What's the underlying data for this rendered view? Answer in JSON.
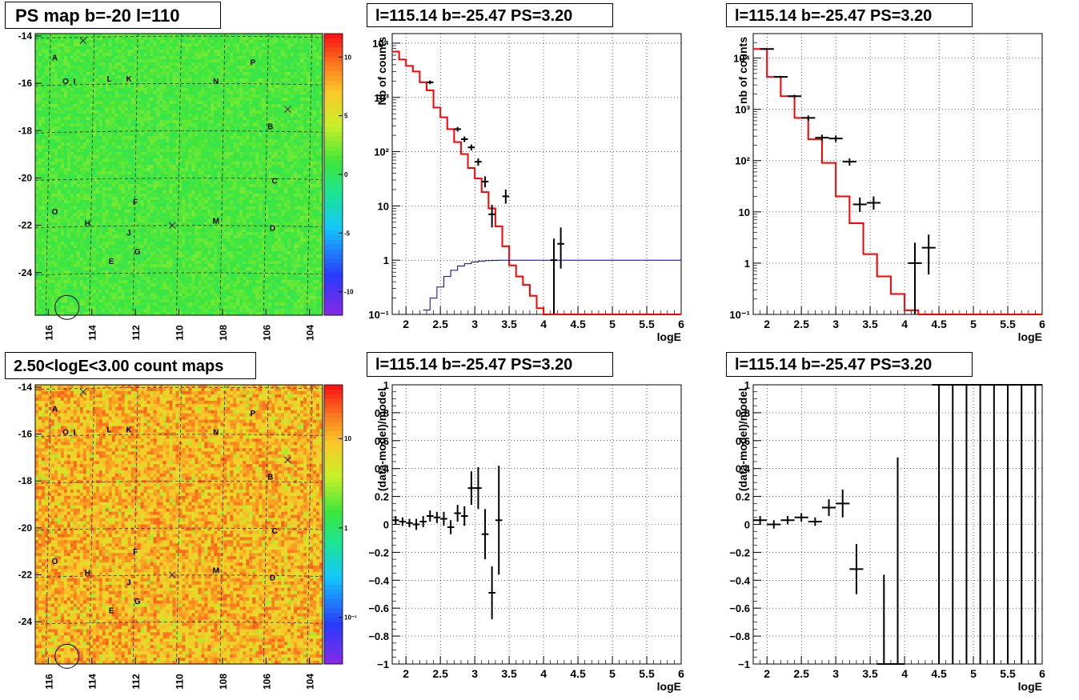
{
  "panels": {
    "ps_map": {
      "title": "PS map b=-20 l=110"
    },
    "count_map": {
      "title": "2.50<logE<3.00 count maps"
    },
    "spec_tl": {
      "title": "l=115.14 b=-25.47 PS=3.20"
    },
    "spec_tr": {
      "title": "l=115.14 b=-25.47 PS=3.20"
    },
    "res_bl": {
      "title": "l=115.14 b=-25.47 PS=3.20"
    },
    "res_br": {
      "title": "l=115.14 b=-25.47 PS=3.20"
    }
  },
  "chart_data": [
    {
      "id": "ps_map",
      "type": "heatmap",
      "title": "PS map b=-20 l=110",
      "xlim": [
        116.6,
        103.4
      ],
      "ylim": [
        -25.8,
        -13.9
      ],
      "xticks": [
        "116",
        "114",
        "112",
        "110",
        "108",
        "106",
        "104"
      ],
      "xtick_values": [
        116,
        114,
        112,
        110,
        108,
        106,
        104
      ],
      "yticks": [
        "-14",
        "-16",
        "-18",
        "-20",
        "-22",
        "-24"
      ],
      "ytick_values": [
        -14,
        -16,
        -18,
        -20,
        -22,
        -24
      ],
      "colorbar_ticks": [
        "10",
        "5",
        "0",
        "-5",
        "-10"
      ],
      "colorbar_tick_values": [
        10,
        5,
        0,
        -5,
        -10
      ],
      "colorbar_range": [
        -12,
        12
      ],
      "dominant_color": "#33dd33",
      "sources": [
        {
          "label": "A",
          "l": 115.7,
          "b": -14.9
        },
        {
          "label": "O",
          "l": 115.2,
          "b": -15.9
        },
        {
          "label": "I",
          "l": 114.8,
          "b": -15.9
        },
        {
          "label": "L",
          "l": 113.2,
          "b": -15.8
        },
        {
          "label": "K",
          "l": 112.3,
          "b": -15.8
        },
        {
          "label": "N",
          "l": 108.3,
          "b": -15.9
        },
        {
          "label": "P",
          "l": 106.6,
          "b": -15.1
        },
        {
          "label": "B",
          "l": 105.8,
          "b": -17.8
        },
        {
          "label": "C",
          "l": 105.6,
          "b": -20.1
        },
        {
          "label": "F",
          "l": 112.0,
          "b": -21.0
        },
        {
          "label": "O",
          "l": 115.7,
          "b": -21.4
        },
        {
          "label": "H",
          "l": 114.2,
          "b": -21.9
        },
        {
          "label": "M",
          "l": 108.3,
          "b": -21.8
        },
        {
          "label": "D",
          "l": 105.7,
          "b": -22.1
        },
        {
          "label": "J",
          "l": 112.3,
          "b": -22.3
        },
        {
          "label": "G",
          "l": 111.9,
          "b": -23.1
        },
        {
          "label": "E",
          "l": 113.1,
          "b": -23.5
        }
      ],
      "crosses": [
        {
          "l": 114.4,
          "b": -14.2
        },
        {
          "l": 105.0,
          "b": -17.1
        },
        {
          "l": 110.3,
          "b": -22.0
        }
      ],
      "circle": {
        "l": 115.14,
        "b": -25.47
      }
    },
    {
      "id": "count_map",
      "type": "heatmap",
      "title": "2.50<logE<3.00 count maps",
      "xlim": [
        116.6,
        103.4
      ],
      "ylim": [
        -25.8,
        -13.9
      ],
      "xticks": [
        "116",
        "114",
        "112",
        "110",
        "108",
        "106",
        "104"
      ],
      "xtick_values": [
        116,
        114,
        112,
        110,
        108,
        106,
        104
      ],
      "yticks": [
        "-14",
        "-16",
        "-18",
        "-20",
        "-22",
        "-24"
      ],
      "ytick_values": [
        -14,
        -16,
        -18,
        -20,
        -22,
        -24
      ],
      "colorbar_ticks": [
        "10",
        "1",
        "10⁻¹"
      ],
      "colorbar_tick_values": [
        10,
        1,
        0.1
      ],
      "colorbar_range_log": [
        0.03,
        40
      ],
      "dominant_color": "#f08020",
      "sources": [
        {
          "label": "A",
          "l": 115.7,
          "b": -14.9
        },
        {
          "label": "O",
          "l": 115.2,
          "b": -15.9
        },
        {
          "label": "I",
          "l": 114.8,
          "b": -15.9
        },
        {
          "label": "L",
          "l": 113.2,
          "b": -15.8
        },
        {
          "label": "K",
          "l": 112.3,
          "b": -15.8
        },
        {
          "label": "N",
          "l": 108.3,
          "b": -15.9
        },
        {
          "label": "P",
          "l": 106.6,
          "b": -15.1
        },
        {
          "label": "B",
          "l": 105.8,
          "b": -17.8
        },
        {
          "label": "C",
          "l": 105.6,
          "b": -20.1
        },
        {
          "label": "F",
          "l": 112.0,
          "b": -21.0
        },
        {
          "label": "O",
          "l": 115.7,
          "b": -21.4
        },
        {
          "label": "H",
          "l": 114.2,
          "b": -21.9
        },
        {
          "label": "M",
          "l": 108.3,
          "b": -21.8
        },
        {
          "label": "D",
          "l": 105.7,
          "b": -22.1
        },
        {
          "label": "J",
          "l": 112.3,
          "b": -22.3
        },
        {
          "label": "G",
          "l": 111.9,
          "b": -23.1
        },
        {
          "label": "E",
          "l": 113.1,
          "b": -23.5
        }
      ],
      "crosses": [
        {
          "l": 114.4,
          "b": -14.2
        },
        {
          "l": 105.0,
          "b": -17.1
        },
        {
          "l": 110.3,
          "b": -22.0
        }
      ],
      "circle": {
        "l": 115.14,
        "b": -25.47
      }
    },
    {
      "id": "spec_tl",
      "type": "line",
      "title": "l=115.14 b=-25.47 PS=3.20",
      "xlabel": "logE",
      "ylabel": "Nb of counts",
      "log_y": true,
      "grid": true,
      "xlim": [
        1.8,
        6
      ],
      "ylim": [
        0.1,
        15000
      ],
      "xticks": [
        "2",
        "2.5",
        "3",
        "3.5",
        "4",
        "4.5",
        "5",
        "5.5",
        "6"
      ],
      "xtick_values": [
        2,
        2.5,
        3,
        3.5,
        4,
        4.5,
        5,
        5.5,
        6
      ],
      "yticks": [
        "10⁻¹",
        "1",
        "10",
        "10²",
        "10³",
        "10⁴"
      ],
      "ytick_values": [
        0.1,
        1,
        10,
        100,
        1000,
        10000
      ],
      "series": [
        {
          "kind": "histogram",
          "color": "#ff0000",
          "width": 2,
          "edges": [
            1.8,
            1.9,
            2.0,
            2.1,
            2.2,
            2.3,
            2.4,
            2.5,
            2.6,
            2.7,
            2.8,
            2.9,
            3.0,
            3.1,
            3.2,
            3.3,
            3.4,
            3.5,
            3.6,
            3.7,
            3.8,
            3.9,
            4.0,
            4.1,
            4.2,
            6.0
          ],
          "values": [
            7000,
            5000,
            3800,
            3000,
            1900,
            1350,
            650,
            430,
            260,
            150,
            90,
            50,
            32,
            18,
            9,
            4.2,
            1.8,
            0.8,
            0.5,
            0.35,
            0.22,
            0.13,
            0.1,
            0.1,
            0.1
          ]
        },
        {
          "kind": "histogram",
          "color": "#0000aa",
          "width": 1,
          "edges": [
            2.25,
            2.35,
            2.45,
            2.55,
            2.65,
            2.75,
            2.85,
            2.95,
            3.05,
            3.15,
            3.25,
            3.35,
            3.45,
            6.0
          ],
          "values": [
            0.12,
            0.2,
            0.32,
            0.5,
            0.65,
            0.78,
            0.86,
            0.92,
            0.96,
            0.98,
            0.99,
            1.0,
            1.0
          ]
        }
      ],
      "points": {
        "x": [
          2.35,
          2.75,
          2.85,
          2.95,
          3.05,
          3.15,
          3.25,
          3.45,
          4.15,
          4.25
        ],
        "y": [
          1900,
          260,
          170,
          120,
          65,
          28,
          7,
          15,
          1,
          2
        ],
        "xerr": 0.05,
        "yerr_low": [
          150,
          25,
          20,
          15,
          10,
          6,
          3,
          4,
          0.9,
          1.3
        ],
        "yerr_high": [
          150,
          25,
          20,
          15,
          10,
          7,
          3.5,
          5,
          1.5,
          2
        ]
      }
    },
    {
      "id": "spec_tr",
      "type": "line",
      "title": "l=115.14 b=-25.47 PS=3.20",
      "xlabel": "logE",
      "ylabel": "nb of counts",
      "log_y": true,
      "grid": true,
      "xlim": [
        1.8,
        6
      ],
      "ylim": [
        0.1,
        30000
      ],
      "xticks": [
        "2",
        "2.5",
        "3",
        "3.5",
        "4",
        "4.5",
        "5",
        "5.5",
        "6"
      ],
      "xtick_values": [
        2,
        2.5,
        3,
        3.5,
        4,
        4.5,
        5,
        5.5,
        6
      ],
      "yticks": [
        "10⁻¹",
        "1",
        "10",
        "10²",
        "10³",
        "10⁴"
      ],
      "ytick_values": [
        0.1,
        1,
        10,
        100,
        1000,
        10000
      ],
      "series": [
        {
          "kind": "histogram",
          "color": "#ff0000",
          "width": 2,
          "edges": [
            1.8,
            2.0,
            2.2,
            2.4,
            2.6,
            2.8,
            3.0,
            3.2,
            3.4,
            3.6,
            3.8,
            4.0,
            4.2,
            6.0
          ],
          "values": [
            15000,
            4300,
            1800,
            680,
            260,
            90,
            20,
            6,
            1.5,
            0.55,
            0.25,
            0.12,
            0.1
          ]
        }
      ],
      "points": {
        "x": [
          2.0,
          2.2,
          2.4,
          2.6,
          2.8,
          3.0,
          3.2,
          3.35,
          3.55,
          4.15,
          4.35
        ],
        "y": [
          15000,
          4300,
          1800,
          680,
          280,
          270,
          95,
          14,
          15,
          1,
          2
        ],
        "xerr": 0.1,
        "yerr_low": [
          400,
          200,
          120,
          80,
          40,
          40,
          15,
          4,
          4,
          0.9,
          1.4
        ],
        "yerr_high": [
          400,
          200,
          120,
          80,
          40,
          40,
          15,
          5,
          5,
          1.5,
          1.6
        ]
      }
    },
    {
      "id": "res_bl",
      "type": "scatter",
      "title": "l=115.14 b=-25.47 PS=3.20",
      "xlabel": "logE",
      "ylabel": "(data-model)/model",
      "grid": true,
      "xlim": [
        1.8,
        6
      ],
      "ylim": [
        -1,
        1
      ],
      "xticks": [
        "2",
        "2.5",
        "3",
        "3.5",
        "4",
        "4.5",
        "5",
        "5.5",
        "6"
      ],
      "xtick_values": [
        2,
        2.5,
        3,
        3.5,
        4,
        4.5,
        5,
        5.5,
        6
      ],
      "yticks": [
        "−1",
        "−0.8",
        "−0.6",
        "−0.4",
        "−0.2",
        "0",
        "0.2",
        "0.4",
        "0.6",
        "0.8",
        "1"
      ],
      "ytick_values": [
        -1,
        -0.8,
        -0.6,
        -0.4,
        -0.2,
        0,
        0.2,
        0.4,
        0.6,
        0.8,
        1
      ],
      "points": {
        "x": [
          1.85,
          1.95,
          2.05,
          2.15,
          2.25,
          2.35,
          2.45,
          2.55,
          2.65,
          2.75,
          2.85,
          2.95,
          3.05,
          3.15,
          3.25,
          3.35
        ],
        "y": [
          0.03,
          0.02,
          0.01,
          0.0,
          0.02,
          0.06,
          0.05,
          0.04,
          -0.02,
          0.08,
          0.06,
          0.26,
          0.26,
          -0.07,
          -0.49,
          0.03
        ],
        "xerr": 0.05,
        "yerr": [
          0.03,
          0.03,
          0.03,
          0.04,
          0.04,
          0.04,
          0.04,
          0.05,
          0.05,
          0.06,
          0.07,
          0.12,
          0.15,
          0.18,
          0.19,
          0.39
        ]
      }
    },
    {
      "id": "res_br",
      "type": "scatter",
      "title": "l=115.14 b=-25.47 PS=3.20",
      "xlabel": "logE",
      "ylabel": "(data-model)/model",
      "grid": true,
      "xlim": [
        1.8,
        6
      ],
      "ylim": [
        -1,
        1
      ],
      "xticks": [
        "2",
        "2.5",
        "3",
        "3.5",
        "4",
        "4.5",
        "5",
        "5.5",
        "6"
      ],
      "xtick_values": [
        2,
        2.5,
        3,
        3.5,
        4,
        4.5,
        5,
        5.5,
        6
      ],
      "yticks": [
        "−1",
        "−0.8",
        "−0.6",
        "−0.4",
        "−0.2",
        "0",
        "0.2",
        "0.4",
        "0.6",
        "0.8",
        "1"
      ],
      "ytick_values": [
        -1,
        -0.8,
        -0.6,
        -0.4,
        -0.2,
        0,
        0.2,
        0.4,
        0.6,
        0.8,
        1
      ],
      "points": {
        "x": [
          1.9,
          2.1,
          2.3,
          2.5,
          2.7,
          2.9,
          3.1,
          3.3,
          3.7,
          3.9,
          4.5,
          4.7,
          4.9,
          5.1,
          5.3,
          5.5,
          5.7,
          5.9
        ],
        "y": [
          0.03,
          0.0,
          0.03,
          0.05,
          0.02,
          0.12,
          0.15,
          -0.32,
          -1,
          -1,
          1,
          1,
          1,
          1,
          1,
          1,
          1,
          1
        ],
        "xerr": 0.1,
        "yerr_low": [
          0.03,
          0.03,
          0.03,
          0.03,
          0.03,
          0.06,
          0.1,
          0.18,
          0,
          0,
          2,
          2,
          2,
          2,
          2,
          2,
          2,
          2
        ],
        "yerr_high": [
          0.03,
          0.03,
          0.03,
          0.03,
          0.03,
          0.06,
          0.1,
          0.18,
          0.64,
          1.48,
          0,
          0,
          0,
          0,
          0,
          0,
          0,
          0
        ]
      }
    }
  ]
}
